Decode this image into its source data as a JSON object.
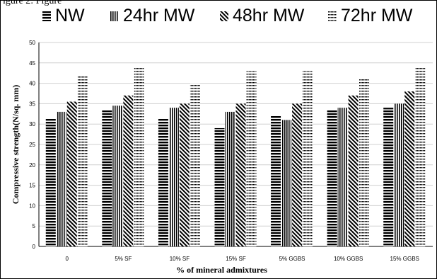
{
  "caption_fragment": "igure 2: Figure",
  "chart_data": {
    "type": "bar",
    "title": "",
    "xlabel": "% of mineral admixtures",
    "ylabel": "Compressive strength(N/sq. mm)",
    "ylim": [
      0,
      50
    ],
    "yticks": [
      0,
      5,
      10,
      15,
      20,
      25,
      30,
      35,
      40,
      45,
      50
    ],
    "grid": true,
    "legend_position": "top",
    "categories": [
      "0",
      "5% SF",
      "10% SF",
      "15% SF",
      "5% GGBS",
      "10% GGBS",
      "15% GGBS"
    ],
    "series": [
      {
        "name": "NW",
        "pattern": "horizontal-stripes",
        "values": [
          31.5,
          33.5,
          31.5,
          29.0,
          32.0,
          33.5,
          34.0
        ]
      },
      {
        "name": "24hr MW",
        "pattern": "vertical-stripes",
        "values": [
          33.0,
          34.5,
          34.0,
          33.0,
          31.0,
          34.0,
          35.0
        ]
      },
      {
        "name": "48hr MW",
        "pattern": "diagonal-stripes",
        "values": [
          35.5,
          37.0,
          35.0,
          35.0,
          35.0,
          37.0,
          38.0
        ]
      },
      {
        "name": "72hr MW",
        "pattern": "dotted-stripes",
        "values": [
          42.0,
          44.0,
          40.0,
          43.0,
          43.0,
          41.0,
          44.0
        ]
      }
    ]
  }
}
